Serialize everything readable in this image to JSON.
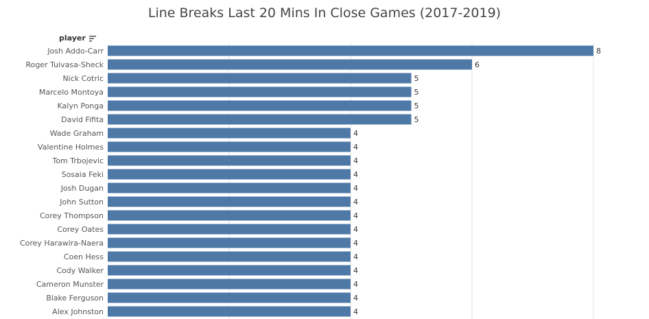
{
  "title": "Line Breaks Last 20 Mins In Close Games (2017-2019)",
  "column_header": "player",
  "colors": {
    "bar": "#4e79a7",
    "grid": "#e6e6e6"
  },
  "sort_icon": "sort-descending-icon",
  "chart_data": {
    "type": "bar",
    "orientation": "horizontal",
    "title": "Line Breaks Last 20 Mins In Close Games (2017-2019)",
    "ylabel": "player",
    "xlim": [
      0,
      8
    ],
    "grid": true,
    "categories": [
      "Josh Addo-Carr",
      "Roger Tuivasa-Sheck",
      "Nick Cotric",
      "Marcelo Montoya",
      "Kalyn Ponga",
      "David Fifita",
      "Wade Graham",
      "Valentine Holmes",
      "Tom Trbojevic",
      "Sosaia Feki",
      "Josh Dugan",
      "John Sutton",
      "Corey Thompson",
      "Corey Oates",
      "Corey Harawira-Naera",
      "Coen Hess",
      "Cody Walker",
      "Cameron Munster",
      "Blake Ferguson",
      "Alex Johnston"
    ],
    "values": [
      8,
      6,
      5,
      5,
      5,
      5,
      4,
      4,
      4,
      4,
      4,
      4,
      4,
      4,
      4,
      4,
      4,
      4,
      4,
      4
    ]
  }
}
